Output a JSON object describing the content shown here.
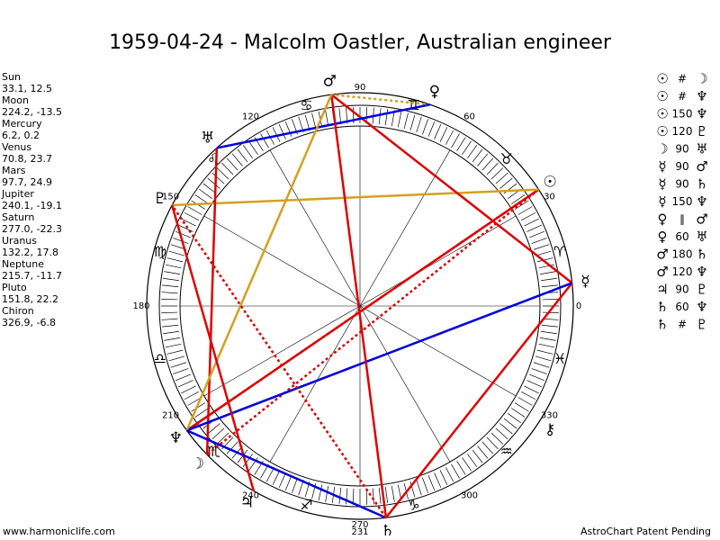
{
  "title": "1959-04-24 - Malcolm Oastler, Australian engineer",
  "planets": [
    {
      "name": "Sun",
      "position": "33.1, 12.5",
      "glyph": "☉"
    },
    {
      "name": "Moon",
      "position": "224.2, -13.5",
      "glyph": "☽"
    },
    {
      "name": "Mercury",
      "position": "6.2, 0.2",
      "glyph": "☿"
    },
    {
      "name": "Venus",
      "position": "70.8, 23.7",
      "glyph": "♀"
    },
    {
      "name": "Mars",
      "position": "97.7, 24.9",
      "glyph": "♂"
    },
    {
      "name": "Jupiter",
      "position": "240.1, -19.1",
      "glyph": "♃"
    },
    {
      "name": "Saturn",
      "position": "277.0, -22.3",
      "glyph": "♄"
    },
    {
      "name": "Uranus",
      "position": "132.2, 17.8",
      "glyph": "♅"
    },
    {
      "name": "Neptune",
      "position": "215.7, -11.7",
      "glyph": "♆"
    },
    {
      "name": "Pluto",
      "position": "151.8, 22.2",
      "glyph": "♇"
    },
    {
      "name": "Chiron",
      "position": "326.9, -6.8",
      "glyph": "⚷"
    }
  ],
  "aspects": [
    {
      "from": "☉",
      "aspect": "#",
      "to": "☽",
      "color": "#e00000",
      "dashed": true
    },
    {
      "from": "☉",
      "aspect": "#",
      "to": "♆",
      "color": "#e00000",
      "dashed": true
    },
    {
      "from": "☉",
      "aspect": "150",
      "to": "♆",
      "color": "#e00000",
      "dashed": false
    },
    {
      "from": "☉",
      "aspect": "120",
      "to": "♇",
      "color": "#d4a020",
      "dashed": false
    },
    {
      "from": "☽",
      "aspect": "90",
      "to": "♅",
      "color": "#e00000",
      "dashed": false
    },
    {
      "from": "☿",
      "aspect": "90",
      "to": "♂",
      "color": "#e00000",
      "dashed": false
    },
    {
      "from": "☿",
      "aspect": "90",
      "to": "♄",
      "color": "#e00000",
      "dashed": false
    },
    {
      "from": "☿",
      "aspect": "150",
      "to": "♆",
      "color": "#0000dd",
      "dashed": false
    },
    {
      "from": "♀",
      "aspect": "∥",
      "to": "♂",
      "color": "#d4a020",
      "dashed": true
    },
    {
      "from": "♀",
      "aspect": "60",
      "to": "♅",
      "color": "#0000dd",
      "dashed": false
    },
    {
      "from": "♂",
      "aspect": "180",
      "to": "♄",
      "color": "#e00000",
      "dashed": false
    },
    {
      "from": "♂",
      "aspect": "120",
      "to": "♆",
      "color": "#d4a020",
      "dashed": false
    },
    {
      "from": "♃",
      "aspect": "90",
      "to": "♇",
      "color": "#e00000",
      "dashed": false
    },
    {
      "from": "♄",
      "aspect": "60",
      "to": "♆",
      "color": "#0000dd",
      "dashed": false
    },
    {
      "from": "♄",
      "aspect": "#",
      "to": "♇",
      "color": "#e00000",
      "dashed": true
    }
  ],
  "signs": [
    "♈",
    "♉",
    "♊",
    "♋",
    "♌",
    "♍",
    "♎",
    "♏",
    "♐",
    "♑",
    "♒",
    "♓"
  ],
  "degree_labels": [
    0,
    30,
    60,
    90,
    120,
    150,
    180,
    210,
    240,
    270,
    300,
    330
  ],
  "bottom_label": "231",
  "footer_left": "www.harmoniclife.com",
  "footer_right": "AstroChart Patent Pending"
}
